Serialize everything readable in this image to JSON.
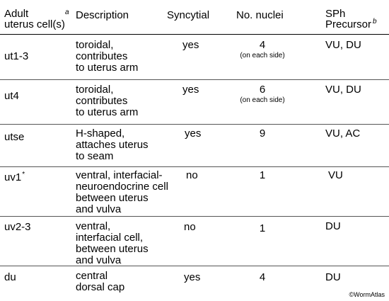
{
  "headers": {
    "cell_line1": "Adult",
    "cell_line2": "uterus cell(s)",
    "cell_note": "a",
    "description": "Description",
    "syncytial": "Syncytial",
    "nuclei": "No. nuclei",
    "sph_line1": "SPh",
    "sph_line2": "Precursor",
    "sph_note": "b"
  },
  "rows": [
    {
      "cell": "ut1-3",
      "cell_mark": "",
      "desc": [
        "toroidal,",
        "contributes",
        "to uterus arm"
      ],
      "syncytial": "yes",
      "nuclei": "4",
      "nuclei_note": "(on each side)",
      "precursor": "VU, DU"
    },
    {
      "cell": "ut4",
      "cell_mark": "",
      "desc": [
        "toroidal,",
        "contributes",
        "to uterus arm"
      ],
      "syncytial": "yes",
      "nuclei": "6",
      "nuclei_note": "(on each side)",
      "precursor": "VU, DU"
    },
    {
      "cell": "utse",
      "cell_mark": "",
      "desc": [
        "H-shaped,",
        "attaches uterus",
        "to seam"
      ],
      "syncytial": "yes",
      "nuclei": "9",
      "nuclei_note": "",
      "precursor": "VU, AC"
    },
    {
      "cell": "uv1",
      "cell_mark": "*",
      "desc": [
        "ventral, interfacial-",
        "neuroendocrine cell",
        "between uterus",
        "and vulva"
      ],
      "syncytial": "no",
      "nuclei": "1",
      "nuclei_note": "",
      "precursor": "VU"
    },
    {
      "cell": "uv2-3",
      "cell_mark": "",
      "desc": [
        "ventral,",
        "interfacial cell,",
        "between uterus",
        "and vulva"
      ],
      "syncytial": "no",
      "nuclei": "1",
      "nuclei_note": "",
      "precursor": "DU"
    },
    {
      "cell": "du",
      "cell_mark": "",
      "desc": [
        "central",
        "dorsal cap"
      ],
      "syncytial": "yes",
      "nuclei": "4",
      "nuclei_note": "",
      "precursor": "DU"
    }
  ],
  "copyright": "©WormAtlas"
}
